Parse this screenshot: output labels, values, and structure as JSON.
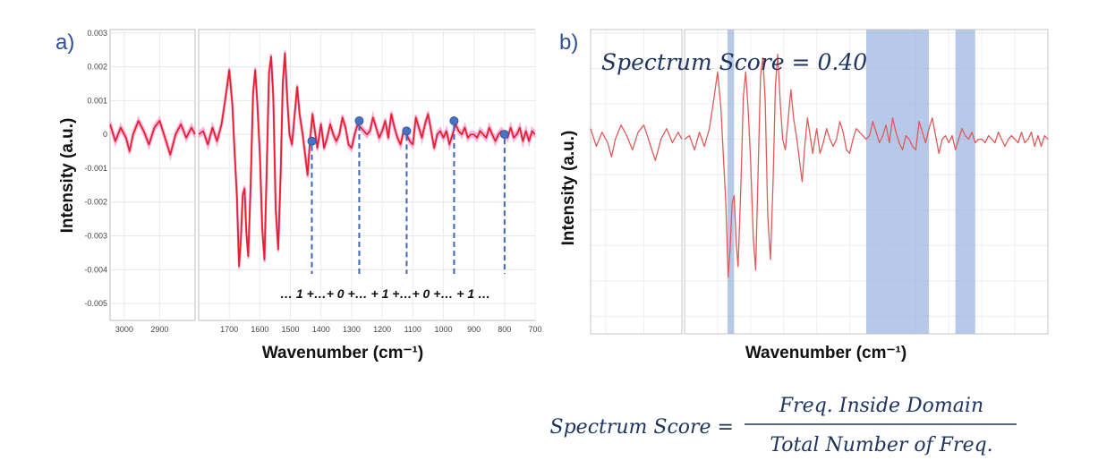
{
  "chart_data": [
    {
      "panel_label": "a)",
      "type": "line",
      "xlabel": "Wavenumber (cm⁻¹)",
      "ylabel": "Intensity (a.u.)",
      "x_axis_reversed": true,
      "x_axis_broken": true,
      "xlim_left_segment": [
        3040,
        2800
      ],
      "xlim_right_segment": [
        1800,
        700
      ],
      "ylim": [
        -0.0055,
        0.0031
      ],
      "grid": true,
      "x_ticks": [
        "3000",
        "2900",
        "1700",
        "1600",
        "1500",
        "1400",
        "1300",
        "1200",
        "1100",
        "1000",
        "900",
        "800",
        "700"
      ],
      "y_ticks": [
        "0.003",
        "0.002",
        "0.001",
        "0",
        "-0.001",
        "-0.002",
        "-0.003",
        "-0.004",
        "-0.005"
      ],
      "series_color": "#e8202a",
      "band_color": "#f4a6e0",
      "spectrum": {
        "left": [
          [
            3040,
            0.0003
          ],
          [
            3025,
            -0.0002
          ],
          [
            3010,
            0.0002
          ],
          [
            2995,
            -0.0001
          ],
          [
            2985,
            -0.0005
          ],
          [
            2975,
            0
          ],
          [
            2960,
            0.0004
          ],
          [
            2945,
            0.0001
          ],
          [
            2930,
            -0.0003
          ],
          [
            2915,
            0.0002
          ],
          [
            2900,
            0.0004
          ],
          [
            2885,
            -0.0001
          ],
          [
            2870,
            -0.0006
          ],
          [
            2855,
            0
          ],
          [
            2840,
            0.0003
          ],
          [
            2825,
            -0.0001
          ],
          [
            2810,
            0.0002
          ],
          [
            2800,
            0
          ]
        ],
        "right": [
          [
            1800,
            0
          ],
          [
            1785,
            0.0001
          ],
          [
            1770,
            -0.0003
          ],
          [
            1755,
            0.0002
          ],
          [
            1740,
            -0.0002
          ],
          [
            1725,
            0.0003
          ],
          [
            1712,
            0.0011
          ],
          [
            1700,
            0.0019
          ],
          [
            1690,
            0.0009
          ],
          [
            1682,
            -0.0006
          ],
          [
            1675,
            -0.0018
          ],
          [
            1668,
            -0.0039
          ],
          [
            1662,
            -0.0031
          ],
          [
            1656,
            -0.0018
          ],
          [
            1650,
            -0.0016
          ],
          [
            1644,
            -0.0029
          ],
          [
            1638,
            -0.0036
          ],
          [
            1630,
            -0.0015
          ],
          [
            1622,
            0.0012
          ],
          [
            1615,
            0.0019
          ],
          [
            1608,
            0.0009
          ],
          [
            1600,
            -0.0006
          ],
          [
            1592,
            -0.0028
          ],
          [
            1585,
            -0.0037
          ],
          [
            1578,
            -0.0012
          ],
          [
            1570,
            0.0018
          ],
          [
            1563,
            0.0023
          ],
          [
            1556,
            0.0011
          ],
          [
            1548,
            -0.0022
          ],
          [
            1540,
            -0.0034
          ],
          [
            1532,
            -0.0012
          ],
          [
            1525,
            0.0015
          ],
          [
            1518,
            0.0024
          ],
          [
            1510,
            0.001
          ],
          [
            1503,
            0
          ],
          [
            1495,
            -0.0003
          ],
          [
            1487,
            0.0005
          ],
          [
            1478,
            0.0014
          ],
          [
            1470,
            0.0006
          ],
          [
            1460,
            0
          ],
          [
            1452,
            -0.0006
          ],
          [
            1444,
            -0.0012
          ],
          [
            1436,
            -0.0002
          ],
          [
            1428,
            0.0006
          ],
          [
            1420,
            0.0001
          ],
          [
            1412,
            -0.0004
          ],
          [
            1400,
            0.0003
          ],
          [
            1390,
            -0.0004
          ],
          [
            1380,
            -0.0001
          ],
          [
            1370,
            0.0003
          ],
          [
            1360,
            0
          ],
          [
            1350,
            -0.0002
          ],
          [
            1340,
            0
          ],
          [
            1330,
            0.0005
          ],
          [
            1320,
            0.0002
          ],
          [
            1310,
            -0.0003
          ],
          [
            1300,
            -0.0004
          ],
          [
            1290,
            0
          ],
          [
            1280,
            0.0003
          ],
          [
            1270,
            0.0002
          ],
          [
            1260,
            0.0001
          ],
          [
            1250,
            0
          ],
          [
            1240,
            0.0001
          ],
          [
            1230,
            0.0005
          ],
          [
            1220,
            0.0002
          ],
          [
            1210,
            -0.0001
          ],
          [
            1200,
            0.0001
          ],
          [
            1190,
            0.0004
          ],
          [
            1180,
            -0.0001
          ],
          [
            1170,
            0.0006
          ],
          [
            1160,
            0.0002
          ],
          [
            1150,
            -0.0001
          ],
          [
            1140,
            -0.0003
          ],
          [
            1130,
            0.0001
          ],
          [
            1120,
            0
          ],
          [
            1110,
            -0.0002
          ],
          [
            1100,
            -0.0003
          ],
          [
            1090,
            0.0005
          ],
          [
            1080,
            0.0002
          ],
          [
            1070,
            -0.0001
          ],
          [
            1060,
            0.0003
          ],
          [
            1050,
            0.0006
          ],
          [
            1040,
            0.0001
          ],
          [
            1030,
            -0.0004
          ],
          [
            1020,
            0
          ],
          [
            1010,
            0.0001
          ],
          [
            1000,
            -0.0001
          ],
          [
            990,
            0.0001
          ],
          [
            980,
            -0.0003
          ],
          [
            970,
            0
          ],
          [
            960,
            0.0003
          ],
          [
            950,
            0.0001
          ],
          [
            940,
            0
          ],
          [
            930,
            0.0002
          ],
          [
            920,
            -0.0001
          ],
          [
            910,
            0
          ],
          [
            900,
            0
          ],
          [
            890,
            -0.0001
          ],
          [
            880,
            0.0001
          ],
          [
            870,
            0
          ],
          [
            860,
            -0.0001
          ],
          [
            850,
            0.0002
          ],
          [
            840,
            0
          ],
          [
            830,
            -0.0002
          ],
          [
            820,
            0
          ],
          [
            810,
            0.0001
          ],
          [
            800,
            0
          ],
          [
            790,
            -0.0001
          ],
          [
            780,
            0.0002
          ],
          [
            770,
            -0.0001
          ],
          [
            760,
            0
          ],
          [
            750,
            0.0002
          ],
          [
            740,
            -0.0002
          ],
          [
            730,
            0.0001
          ],
          [
            720,
            -0.0002
          ],
          [
            710,
            0.0001
          ],
          [
            700,
            0
          ]
        ]
      },
      "markers": [
        {
          "x": 1430,
          "y": -0.0002
        },
        {
          "x": 1275,
          "y": 0.0004
        },
        {
          "x": 1120,
          "y": 0.0001
        },
        {
          "x": 965,
          "y": 0.0004
        },
        {
          "x": 800,
          "y": 0
        }
      ],
      "sequence_text": "… 1 +…+ 0 +… + 1 +…+ 0 +… + 1 …"
    },
    {
      "panel_label": "b)",
      "type": "line",
      "xlabel": "Wavenumber (cm⁻¹)",
      "ylabel": "Intensity (a.u.)",
      "x_axis_reversed": true,
      "x_axis_broken": true,
      "xlim_left_segment": [
        3040,
        2800
      ],
      "xlim_right_segment": [
        1800,
        700
      ],
      "ylim": [
        -0.0055,
        0.0031
      ],
      "grid": true,
      "series_color": "#e05a5a",
      "highlight_color": "#9fb6e2",
      "highlight_ranges": [
        [
          1670,
          1650
        ],
        [
          1250,
          1060
        ],
        [
          980,
          920
        ]
      ],
      "annotation": "Spectrum Score = 0.40"
    }
  ],
  "formula": {
    "lhs": "Spectrum Score =",
    "numerator": "Freq. Inside Domain",
    "denominator": "Total Number of Freq."
  }
}
